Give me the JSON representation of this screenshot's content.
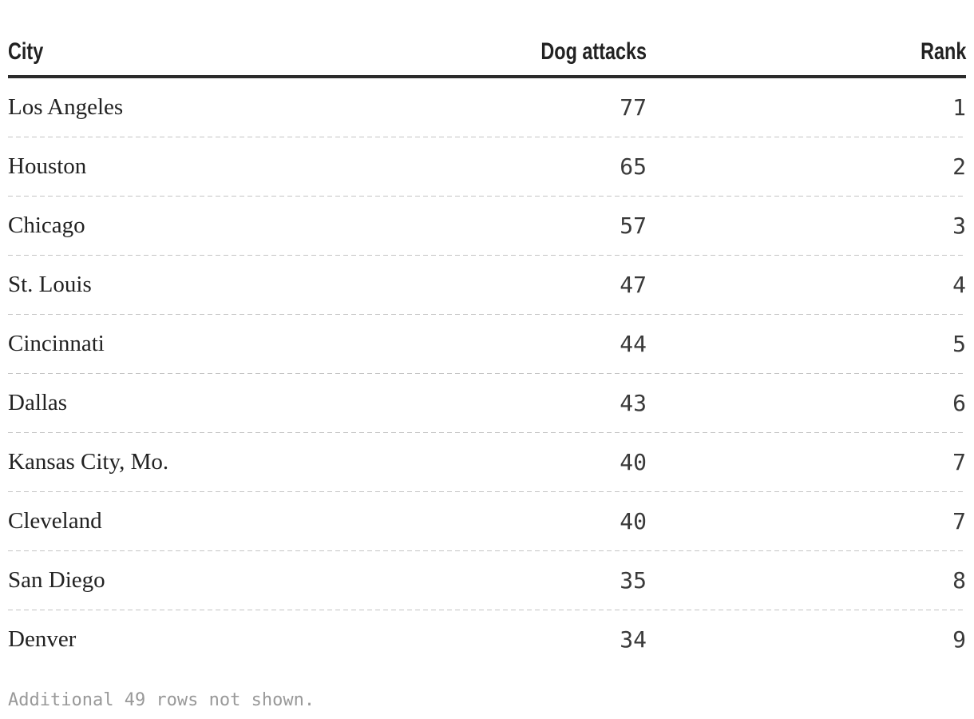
{
  "table": {
    "columns": [
      {
        "label": "City",
        "align": "left"
      },
      {
        "label": "Dog attacks",
        "align": "right"
      },
      {
        "label": "Rank",
        "align": "right"
      }
    ],
    "rows": [
      {
        "city": "Los Angeles",
        "attacks": "77",
        "rank": "1"
      },
      {
        "city": "Houston",
        "attacks": "65",
        "rank": "2"
      },
      {
        "city": "Chicago",
        "attacks": "57",
        "rank": "3"
      },
      {
        "city": "St. Louis",
        "attacks": "47",
        "rank": "4"
      },
      {
        "city": "Cincinnati",
        "attacks": "44",
        "rank": "5"
      },
      {
        "city": "Dallas",
        "attacks": "43",
        "rank": "6"
      },
      {
        "city": "Kansas City, Mo.",
        "attacks": "40",
        "rank": "7"
      },
      {
        "city": "Cleveland",
        "attacks": "40",
        "rank": "7"
      },
      {
        "city": "San Diego",
        "attacks": "35",
        "rank": "8"
      },
      {
        "city": "Denver",
        "attacks": "34",
        "rank": "9"
      }
    ],
    "footer": "Additional 49 rows not shown."
  },
  "chart_data": {
    "type": "table",
    "columns": [
      "City",
      "Dog attacks",
      "Rank"
    ],
    "rows": [
      [
        "Los Angeles",
        77,
        1
      ],
      [
        "Houston",
        65,
        2
      ],
      [
        "Chicago",
        57,
        3
      ],
      [
        "St. Louis",
        47,
        4
      ],
      [
        "Cincinnati",
        44,
        5
      ],
      [
        "Dallas",
        43,
        6
      ],
      [
        "Kansas City, Mo.",
        40,
        7
      ],
      [
        "Cleveland",
        40,
        7
      ],
      [
        "San Diego",
        35,
        8
      ],
      [
        "Denver",
        34,
        9
      ]
    ],
    "note": "Additional 49 rows not shown."
  },
  "colors": {
    "background": "#ffffff",
    "header_text": "#222222",
    "header_rule": "#2b2b2b",
    "city_text": "#222222",
    "number_text": "#3a3a3a",
    "separator": "#c4c4c4",
    "footer_text": "#999999"
  }
}
